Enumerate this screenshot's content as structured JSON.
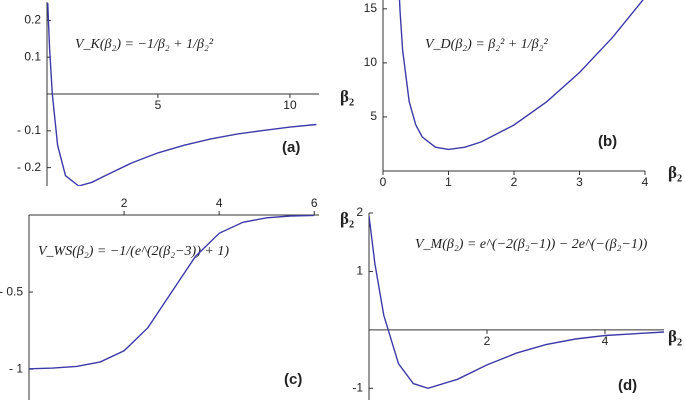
{
  "chart_data": [
    {
      "type": "line",
      "x_label": "β₂",
      "annotation": "V_K(β₂) = −1/β₂ + 1/β₂²",
      "panel_label": "(a)",
      "color": "#3d3aa8",
      "x": [
        0.83,
        0.85,
        0.9,
        1,
        1.2,
        1.5,
        2,
        2.5,
        3,
        4,
        5,
        6,
        7,
        8,
        9,
        10,
        11
      ],
      "values": [
        0.247,
        0.208,
        0.123,
        0,
        -0.139,
        -0.222,
        -0.25,
        -0.24,
        -0.222,
        -0.1875,
        -0.16,
        -0.139,
        -0.122,
        -0.109,
        -0.099,
        -0.09,
        -0.083
      ],
      "xlim": [
        0.8,
        11.1
      ],
      "ylim": [
        -0.25,
        0.25
      ],
      "xticks": [
        5,
        10
      ],
      "yticks": [
        {
          "value": -0.2,
          "label": "- 0.2"
        },
        {
          "value": -0.1,
          "label": "- 0.1"
        },
        0.1,
        0.2
      ]
    },
    {
      "type": "line",
      "x_label": "β₂",
      "annotation": "V_D(β₂) = β₂² + 1/β₂²",
      "panel_label": "(b)",
      "color": "#3d3aa8",
      "x": [
        0.25,
        0.26,
        0.3,
        0.4,
        0.5,
        0.6,
        0.8,
        1,
        1.25,
        1.5,
        2,
        2.5,
        3,
        3.5,
        4
      ],
      "values": [
        16.06,
        14.86,
        11.2,
        6.41,
        4.25,
        3.14,
        2.2,
        2,
        2.2,
        2.69,
        4.25,
        6.41,
        9.11,
        12.33,
        16.06
      ],
      "xlim": [
        0,
        4
      ],
      "ylim": [
        0,
        16
      ],
      "xticks": [
        0,
        1,
        2,
        3,
        4
      ],
      "yticks": [
        5,
        10,
        15
      ]
    },
    {
      "type": "line",
      "x_label": "β₂",
      "annotation": "V_WS(β₂) = −1/(e^(2(β₂−3)) + 1)",
      "panel_label": "(c)",
      "color": "#3d3aa8",
      "x": [
        0,
        0.5,
        1,
        1.5,
        2,
        2.5,
        3,
        3.5,
        4,
        4.5,
        5,
        5.5,
        6
      ],
      "values": [
        -0.9975,
        -0.9933,
        -0.982,
        -0.953,
        -0.881,
        -0.731,
        -0.5,
        -0.269,
        -0.119,
        -0.0474,
        -0.018,
        -0.0067,
        -0.0025
      ],
      "xlim": [
        0,
        6.1
      ],
      "ylim": [
        -1.2,
        0
      ],
      "xticks": [
        2,
        4,
        6
      ],
      "yticks": [
        {
          "value": -1,
          "label": "- 1"
        },
        {
          "value": -0.5,
          "label": "- 0.5"
        }
      ]
    },
    {
      "type": "line",
      "x_label": "β₂",
      "annotation": "V_M(β₂) = e^(−2(β₂−1)) − 2e^(−(β₂−1))",
      "panel_label": "(d)",
      "color": "#3d3aa8",
      "x": [
        0,
        0.1,
        0.25,
        0.5,
        0.75,
        1,
        1.5,
        2,
        2.5,
        3,
        3.5,
        4,
        5
      ],
      "values": [
        1.952,
        1.13,
        0.248,
        -0.579,
        -0.92,
        -1,
        -0.845,
        -0.6,
        -0.397,
        -0.252,
        -0.157,
        -0.097,
        -0.036
      ],
      "xlim": [
        0,
        5
      ],
      "ylim": [
        -1.2,
        2
      ],
      "xticks": [
        2,
        4
      ],
      "yticks": [
        -1,
        1,
        2
      ]
    }
  ]
}
